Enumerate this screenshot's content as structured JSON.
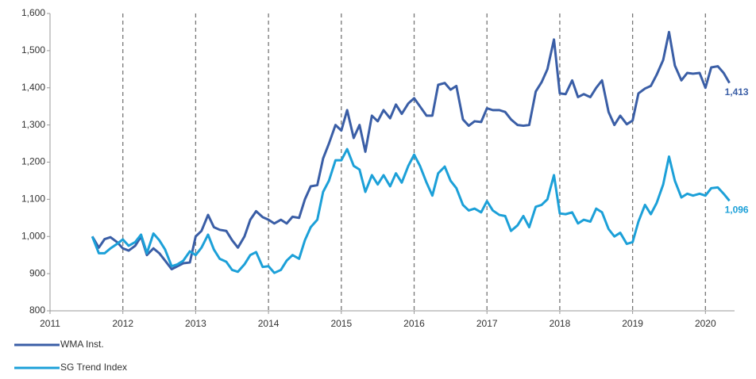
{
  "chart_data": {
    "type": "line",
    "x": [
      2011.58,
      2011.67,
      2011.75,
      2011.83,
      2011.92,
      2012.0,
      2012.08,
      2012.17,
      2012.25,
      2012.33,
      2012.42,
      2012.5,
      2012.58,
      2012.67,
      2012.75,
      2012.83,
      2012.92,
      2013.0,
      2013.08,
      2013.17,
      2013.25,
      2013.33,
      2013.42,
      2013.5,
      2013.58,
      2013.67,
      2013.75,
      2013.83,
      2013.92,
      2014.0,
      2014.08,
      2014.17,
      2014.25,
      2014.33,
      2014.42,
      2014.5,
      2014.58,
      2014.67,
      2014.75,
      2014.83,
      2014.92,
      2015.0,
      2015.08,
      2015.17,
      2015.25,
      2015.33,
      2015.42,
      2015.5,
      2015.58,
      2015.67,
      2015.75,
      2015.83,
      2015.92,
      2016.0,
      2016.08,
      2016.17,
      2016.25,
      2016.33,
      2016.42,
      2016.5,
      2016.58,
      2016.67,
      2016.75,
      2016.83,
      2016.92,
      2017.0,
      2017.08,
      2017.17,
      2017.25,
      2017.33,
      2017.42,
      2017.5,
      2017.58,
      2017.67,
      2017.75,
      2017.83,
      2017.92,
      2018.0,
      2018.08,
      2018.17,
      2018.25,
      2018.33,
      2018.42,
      2018.5,
      2018.58,
      2018.67,
      2018.75,
      2018.83,
      2018.92,
      2019.0,
      2019.08,
      2019.17,
      2019.25,
      2019.33,
      2019.42,
      2019.5,
      2019.58,
      2019.67,
      2019.75,
      2019.83,
      2019.92,
      2020.0,
      2020.08,
      2020.17,
      2020.25,
      2020.33
    ],
    "series": [
      {
        "name": "WMA Inst.",
        "color": "#3a5ea6",
        "end_label": "1,413",
        "values": [
          1000,
          970,
          993,
          998,
          985,
          968,
          962,
          975,
          1000,
          950,
          968,
          955,
          935,
          912,
          920,
          928,
          930,
          1000,
          1015,
          1058,
          1025,
          1018,
          1015,
          990,
          970,
          1000,
          1045,
          1068,
          1052,
          1045,
          1035,
          1045,
          1035,
          1053,
          1050,
          1100,
          1135,
          1138,
          1210,
          1250,
          1300,
          1285,
          1340,
          1265,
          1300,
          1228,
          1325,
          1310,
          1340,
          1318,
          1355,
          1330,
          1358,
          1372,
          1350,
          1325,
          1325,
          1408,
          1413,
          1395,
          1405,
          1315,
          1298,
          1310,
          1308,
          1345,
          1340,
          1340,
          1335,
          1315,
          1300,
          1298,
          1300,
          1390,
          1415,
          1450,
          1530,
          1385,
          1383,
          1420,
          1375,
          1383,
          1375,
          1400,
          1420,
          1335,
          1300,
          1325,
          1302,
          1312,
          1385,
          1398,
          1405,
          1435,
          1475,
          1550,
          1460,
          1420,
          1440,
          1438,
          1440,
          1400,
          1455,
          1458,
          1440,
          1413
        ]
      },
      {
        "name": "SG Trend Index",
        "color": "#1ca0d8",
        "end_label": "1,096",
        "values": [
          1000,
          955,
          955,
          968,
          980,
          992,
          975,
          985,
          1005,
          955,
          1008,
          990,
          965,
          920,
          925,
          935,
          960,
          950,
          970,
          1005,
          965,
          940,
          932,
          910,
          905,
          925,
          950,
          958,
          918,
          920,
          902,
          910,
          935,
          950,
          940,
          990,
          1025,
          1045,
          1120,
          1150,
          1205,
          1205,
          1235,
          1190,
          1180,
          1120,
          1165,
          1140,
          1165,
          1135,
          1170,
          1145,
          1190,
          1220,
          1190,
          1145,
          1110,
          1170,
          1188,
          1150,
          1130,
          1085,
          1070,
          1075,
          1065,
          1095,
          1070,
          1058,
          1055,
          1015,
          1030,
          1055,
          1025,
          1080,
          1085,
          1100,
          1165,
          1062,
          1060,
          1065,
          1035,
          1045,
          1040,
          1075,
          1065,
          1020,
          1000,
          1010,
          980,
          985,
          1040,
          1085,
          1060,
          1090,
          1140,
          1215,
          1150,
          1105,
          1115,
          1110,
          1115,
          1110,
          1130,
          1132,
          1115,
          1096
        ]
      }
    ],
    "xlim": [
      2011,
      2020.4
    ],
    "xticks": [
      2011,
      2012,
      2013,
      2014,
      2015,
      2016,
      2017,
      2018,
      2019,
      2020
    ],
    "ylim": [
      800,
      1600
    ],
    "yticks": [
      {
        "value": 800,
        "label": "800"
      },
      {
        "value": 900,
        "label": "900"
      },
      {
        "value": 1000,
        "label": "1,000"
      },
      {
        "value": 1100,
        "label": "1,100"
      },
      {
        "value": 1200,
        "label": "1,200"
      },
      {
        "value": 1300,
        "label": "1,300"
      },
      {
        "value": 1400,
        "label": "1,400"
      },
      {
        "value": 1500,
        "label": "1,500"
      },
      {
        "value": 1600,
        "label": "1,600"
      }
    ],
    "grid": "x-dashed",
    "legend": "bottom-left"
  }
}
